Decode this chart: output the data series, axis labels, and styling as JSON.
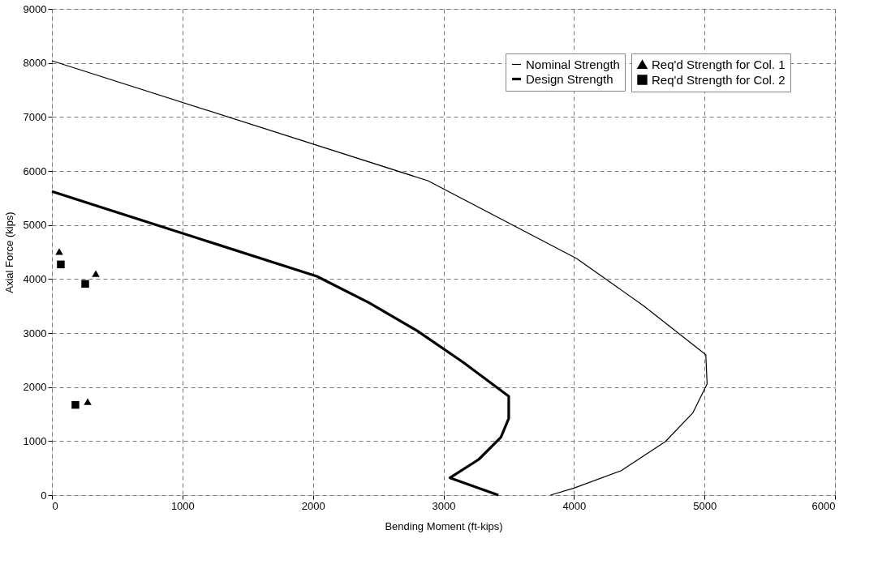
{
  "chart_data": {
    "type": "line",
    "xlabel": "Bending Moment (ft-kips)",
    "ylabel": "Axial Force (kips)",
    "xlim": [
      0,
      6000
    ],
    "xticks": [
      0,
      1000,
      2000,
      3000,
      4000,
      5000,
      6000
    ],
    "ylim": [
      0,
      9000
    ],
    "yticks": [
      0,
      1000,
      2000,
      3000,
      4000,
      5000,
      6000,
      7000,
      8000,
      9000
    ],
    "grid": true,
    "legend": "top right",
    "line_style": "solid",
    "series": [
      {
        "name": "Nominal Strength",
        "marker": "none",
        "color": "#000000",
        "x": [
          0,
          2880,
          3450,
          4020,
          4530,
          5010,
          5020,
          4910,
          4700,
          4360,
          4000,
          3820
        ],
        "values": [
          8040,
          5820,
          5100,
          4380,
          3510,
          2600,
          2060,
          1520,
          990,
          450,
          130,
          0
        ]
      },
      {
        "name": "Design Strength",
        "marker": "none",
        "color": "#000000",
        "x": [
          0,
          2030,
          2430,
          2800,
          3150,
          3500,
          3500,
          3440,
          3270,
          3050,
          3420
        ],
        "values": [
          5620,
          4050,
          3560,
          3040,
          2460,
          1830,
          1420,
          1070,
          660,
          320,
          0
        ]
      },
      {
        "name": "Req'd Strength for Col. 1",
        "type": "scatter",
        "marker": "triangle",
        "color": "#000000",
        "x": [
          56,
          336,
          274
        ],
        "values": [
          4510,
          4100,
          1730
        ]
      },
      {
        "name": "Req'd Strength for Col. 2",
        "type": "scatter",
        "marker": "square",
        "color": "#000000",
        "x": [
          68,
          255,
          180
        ],
        "values": [
          4270,
          3910,
          1670
        ]
      }
    ]
  }
}
